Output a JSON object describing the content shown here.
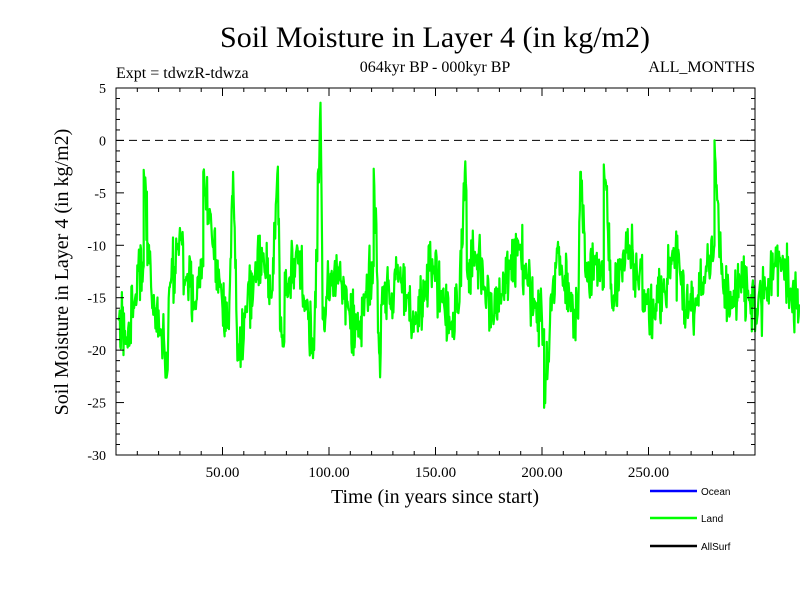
{
  "chart_data": {
    "type": "line",
    "title": "Soil Moisture in Layer 4 (in kg/m2)",
    "subtitle_left": "Expt = tdwzR-tdwza",
    "subtitle_center": "064kyr BP - 000kyr BP",
    "subtitle_right": "ALL_MONTHS",
    "xlabel": "Time (in years since start)",
    "ylabel": "Soil Moisture in Layer 4 (in kg/m2)",
    "xlim": [
      0,
      300
    ],
    "ylim": [
      -30,
      5
    ],
    "x_ticks": [
      50,
      100,
      150,
      200,
      250
    ],
    "x_tick_labels": [
      "50.00",
      "100.00",
      "150.00",
      "200.00",
      "250.00"
    ],
    "y_ticks": [
      5,
      0,
      -5,
      -10,
      -15,
      -20,
      -25,
      -30
    ],
    "y_tick_labels": [
      "5",
      "0",
      "-5",
      "-10",
      "-15",
      "-20",
      "-25",
      "-30"
    ],
    "reference_line": {
      "y": 0,
      "style": "dashed",
      "color": "#000000"
    },
    "legend_position": "bottom-right",
    "series": [
      {
        "name": "Ocean",
        "label": "Ocean",
        "color": "#0000ff",
        "values": []
      },
      {
        "name": "Land",
        "label": "Land",
        "color": "#00ff00",
        "x_start": 1,
        "x_step": 4,
        "values": [
          -17,
          -19,
          -15,
          -12,
          -16,
          -18,
          -14,
          -10,
          -13,
          -16,
          -12,
          -9,
          -14,
          -18,
          -21,
          -16,
          -13,
          -11,
          -15,
          -18,
          -14,
          -10,
          -16,
          -20,
          -17,
          -13,
          -12,
          -16,
          -18,
          -15,
          -12,
          -14,
          -16,
          -13,
          -15,
          -17,
          -14,
          -12,
          -15,
          -18,
          -16,
          -13,
          -11,
          -14,
          -17,
          -15,
          -12,
          -10,
          -13,
          -16,
          -18,
          -14,
          -12,
          -15,
          -17,
          -13,
          -11,
          -14,
          -16,
          -12,
          -10,
          -13,
          -15,
          -17,
          -14,
          -11,
          -13,
          -16,
          -15,
          -12,
          -10,
          -14,
          -16,
          -13,
          -15,
          -17,
          -14,
          -12,
          -11,
          -15,
          -16
        ]
      },
      {
        "name": "AllSurf",
        "label": "AllSurf",
        "color": "#000000",
        "values": []
      }
    ],
    "annotated_extremes": [
      {
        "x": 96,
        "y": 3.6
      },
      {
        "x": 201,
        "y": -25.5
      },
      {
        "x": 281,
        "y": 0
      },
      {
        "x": 24,
        "y": -22.3
      },
      {
        "x": 124,
        "y": -22.6
      },
      {
        "x": 41,
        "y": -3
      },
      {
        "x": 164,
        "y": -2
      },
      {
        "x": 76,
        "y": -2.5
      },
      {
        "x": 121,
        "y": -2.7
      },
      {
        "x": 229,
        "y": -2.3
      },
      {
        "x": 218,
        "y": -3
      },
      {
        "x": 55,
        "y": -3
      },
      {
        "x": 13,
        "y": -2.8
      }
    ]
  }
}
